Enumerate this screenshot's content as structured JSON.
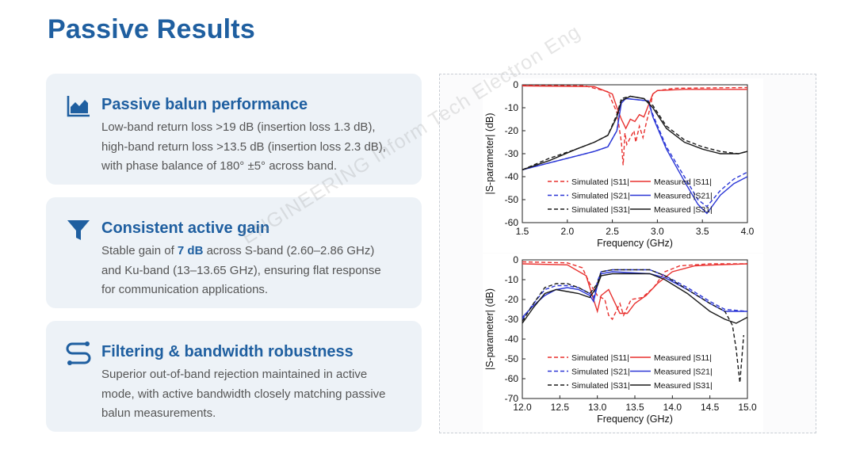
{
  "page": {
    "title": "Passive Results"
  },
  "cards": [
    {
      "icon": "area-chart-icon",
      "title": "Passive balun performance",
      "body": [
        "Low-band return loss >19 dB (insertion loss 1.3 dB),",
        "high-band return loss >13.5 dB (insertion loss  2.3 dB),",
        "with phase balance of 180°  ±5°   across band."
      ]
    },
    {
      "icon": "funnel-icon",
      "title": "Consistent active gain",
      "body_pre": "Stable gain of ",
      "body_bold": "7 dB",
      "body_post": [
        " across S-band (2.60–2.86 GHz)",
        "and Ku-band (13–13.65 GHz), ensuring flat response",
        "for communication applications."
      ]
    },
    {
      "icon": "route-icon",
      "title": "Filtering & bandwidth robustness",
      "body": [
        "Superior out-of-band rejection maintained in active",
        "mode, with active bandwidth closely matching passive",
        "balun measurements."
      ]
    }
  ],
  "watermark": "ENGINEERING Inform Tech Electron Eng",
  "colors": {
    "title": "#1f5fa0",
    "s11": "#e8312f",
    "s21": "#2b37d6",
    "s31": "#1a1a1a"
  },
  "chart_data": [
    {
      "type": "line",
      "xlabel": "Frequency (GHz)",
      "ylabel": "|S-parameter| (dB)",
      "xlim": [
        1.5,
        4.0
      ],
      "ylim": [
        -60,
        0
      ],
      "xticks": [
        "1.5",
        "2.0",
        "2.5",
        "3.0",
        "3.5",
        "4.0"
      ],
      "yticks": [
        "0",
        "-10",
        "-20",
        "-30",
        "-40",
        "-50",
        "-60"
      ],
      "legend": [
        "Simulated |S11|",
        "Measured |S11|",
        "Simulated |S21|",
        "Measured |S21|",
        "Simulated |S31|",
        "Measured |S31|"
      ],
      "series": [
        {
          "name": "Simulated |S11|",
          "color": "#e8312f",
          "dashed": true,
          "x": [
            1.5,
            2.2,
            2.45,
            2.55,
            2.6,
            2.62,
            2.64,
            2.66,
            2.7,
            2.74,
            2.76,
            2.8,
            2.84,
            2.88,
            2.92,
            2.95,
            3.0,
            3.2,
            4.0
          ],
          "y": [
            -0.3,
            -0.5,
            -3,
            -12,
            -25,
            -35,
            -21,
            -26,
            -23,
            -20,
            -25,
            -18,
            -23,
            -16,
            -10,
            -4,
            -2.5,
            -1.5,
            -1.2
          ]
        },
        {
          "name": "Measured |S11|",
          "color": "#e8312f",
          "dashed": false,
          "x": [
            1.5,
            2.3,
            2.5,
            2.56,
            2.6,
            2.65,
            2.7,
            2.75,
            2.8,
            2.85,
            2.9,
            2.95,
            3.0,
            3.3,
            4.0
          ],
          "y": [
            -0.5,
            -0.8,
            -4,
            -11,
            -15,
            -19,
            -15,
            -16,
            -13,
            -14,
            -9,
            -4,
            -2.5,
            -2,
            -2
          ]
        },
        {
          "name": "Simulated |S21|",
          "color": "#2b37d6",
          "dashed": true,
          "x": [
            1.5,
            1.8,
            2.1,
            2.3,
            2.45,
            2.55,
            2.6,
            2.65,
            2.9,
            2.95,
            3.1,
            3.3,
            3.45,
            3.55,
            3.7,
            3.85,
            4.0
          ],
          "y": [
            -37,
            -34,
            -31,
            -29,
            -27,
            -20,
            -7,
            -6,
            -7,
            -13,
            -27,
            -40,
            -50,
            -53,
            -46,
            -41,
            -38
          ]
        },
        {
          "name": "Measured |S21|",
          "color": "#2b37d6",
          "dashed": false,
          "x": [
            1.5,
            1.8,
            2.1,
            2.3,
            2.45,
            2.55,
            2.6,
            2.65,
            2.9,
            2.95,
            3.1,
            3.3,
            3.45,
            3.55,
            3.7,
            3.85,
            4.0
          ],
          "y": [
            -37,
            -34,
            -31,
            -29,
            -27,
            -20,
            -8,
            -6,
            -7,
            -14,
            -28,
            -42,
            -52,
            -56,
            -48,
            -43,
            -40
          ]
        },
        {
          "name": "Simulated |S31|",
          "color": "#1a1a1a",
          "dashed": true,
          "x": [
            1.5,
            1.8,
            2.1,
            2.3,
            2.45,
            2.55,
            2.6,
            2.7,
            2.85,
            2.95,
            3.1,
            3.3,
            3.5,
            3.7,
            3.9,
            4.0
          ],
          "y": [
            -37,
            -32,
            -28,
            -25,
            -22,
            -13,
            -6,
            -5,
            -6,
            -9,
            -18,
            -24,
            -27,
            -29,
            -30,
            -29
          ]
        },
        {
          "name": "Measured |S31|",
          "color": "#1a1a1a",
          "dashed": false,
          "x": [
            1.5,
            1.8,
            2.1,
            2.3,
            2.45,
            2.55,
            2.6,
            2.7,
            2.85,
            2.95,
            3.1,
            3.3,
            3.5,
            3.7,
            3.9,
            4.0
          ],
          "y": [
            -37,
            -33,
            -28,
            -25,
            -22,
            -14,
            -7,
            -5,
            -6,
            -10,
            -19,
            -25,
            -28,
            -30,
            -30,
            -29
          ]
        }
      ]
    },
    {
      "type": "line",
      "xlabel": "Frequency (GHz)",
      "ylabel": "|S-parameter| (dB)",
      "xlim": [
        12.0,
        15.0
      ],
      "ylim": [
        -70,
        0
      ],
      "xticks": [
        "12.0",
        "12.5",
        "13.0",
        "13.5",
        "14.0",
        "14.5",
        "15.0"
      ],
      "yticks": [
        "0",
        "-10",
        "-20",
        "-30",
        "-40",
        "-50",
        "-60",
        "-70"
      ],
      "legend": [
        "Simulated |S11|",
        "Measured |S11|",
        "Simulated |S21|",
        "Measured |S21|",
        "Simulated |S31|",
        "Measured |S31|"
      ],
      "series": [
        {
          "name": "Simulated |S11|",
          "color": "#e8312f",
          "dashed": true,
          "x": [
            12.0,
            12.6,
            12.8,
            12.9,
            13.0,
            13.1,
            13.15,
            13.2,
            13.3,
            13.35,
            13.45,
            13.6,
            13.75,
            13.9,
            14.1,
            14.5,
            15.0
          ],
          "y": [
            -1,
            -1.5,
            -4,
            -12,
            -18,
            -20,
            -28,
            -30,
            -22,
            -28,
            -20,
            -19,
            -14,
            -6,
            -3,
            -2,
            -2
          ]
        },
        {
          "name": "Measured |S11|",
          "color": "#e8312f",
          "dashed": false,
          "x": [
            12.0,
            12.6,
            12.85,
            12.95,
            13.0,
            13.05,
            13.15,
            13.3,
            13.4,
            13.5,
            13.65,
            13.8,
            14.0,
            14.3,
            14.6,
            15.0
          ],
          "y": [
            -2,
            -2.5,
            -8,
            -20,
            -26,
            -18,
            -15,
            -27,
            -27,
            -22,
            -18,
            -12,
            -6,
            -3,
            -2.5,
            -2
          ]
        },
        {
          "name": "Simulated |S21|",
          "color": "#2b37d6",
          "dashed": true,
          "x": [
            12.0,
            12.15,
            12.3,
            12.45,
            12.6,
            12.75,
            12.9,
            12.95,
            13.0,
            13.05,
            13.2,
            13.7,
            13.9,
            14.2,
            14.5,
            14.7,
            15.0
          ],
          "y": [
            -30,
            -22,
            -15,
            -13,
            -13,
            -14,
            -17,
            -19,
            -11,
            -6,
            -5,
            -5,
            -8,
            -14,
            -21,
            -25,
            -26
          ]
        },
        {
          "name": "Measured |S21|",
          "color": "#2b37d6",
          "dashed": false,
          "x": [
            12.0,
            12.15,
            12.3,
            12.45,
            12.6,
            12.75,
            12.9,
            12.95,
            13.0,
            13.05,
            13.2,
            13.7,
            13.9,
            14.2,
            14.5,
            14.7,
            15.0
          ],
          "y": [
            -29,
            -23,
            -18,
            -15,
            -14,
            -15,
            -18,
            -21,
            -13,
            -7,
            -6,
            -7,
            -9,
            -15,
            -22,
            -26,
            -26
          ]
        },
        {
          "name": "Simulated |S31|",
          "color": "#1a1a1a",
          "dashed": true,
          "x": [
            12.0,
            12.15,
            12.3,
            12.45,
            12.6,
            12.75,
            12.9,
            13.0,
            13.05,
            13.2,
            13.7,
            13.9,
            14.2,
            14.5,
            14.7,
            14.8,
            14.85,
            14.9,
            14.95
          ],
          "y": [
            -31,
            -22,
            -14,
            -12,
            -12,
            -14,
            -17,
            -12,
            -6,
            -5,
            -5,
            -8,
            -15,
            -22,
            -26,
            -33,
            -45,
            -62,
            -38
          ]
        },
        {
          "name": "Measured |S31|",
          "color": "#1a1a1a",
          "dashed": false,
          "x": [
            12.0,
            12.15,
            12.3,
            12.45,
            12.6,
            12.75,
            12.9,
            13.0,
            13.05,
            13.2,
            13.7,
            13.9,
            14.2,
            14.5,
            14.7,
            14.85,
            15.0
          ],
          "y": [
            -32,
            -24,
            -17,
            -15,
            -16,
            -17,
            -19,
            -13,
            -8,
            -7,
            -7,
            -10,
            -17,
            -26,
            -30,
            -32,
            -29
          ]
        }
      ]
    }
  ]
}
